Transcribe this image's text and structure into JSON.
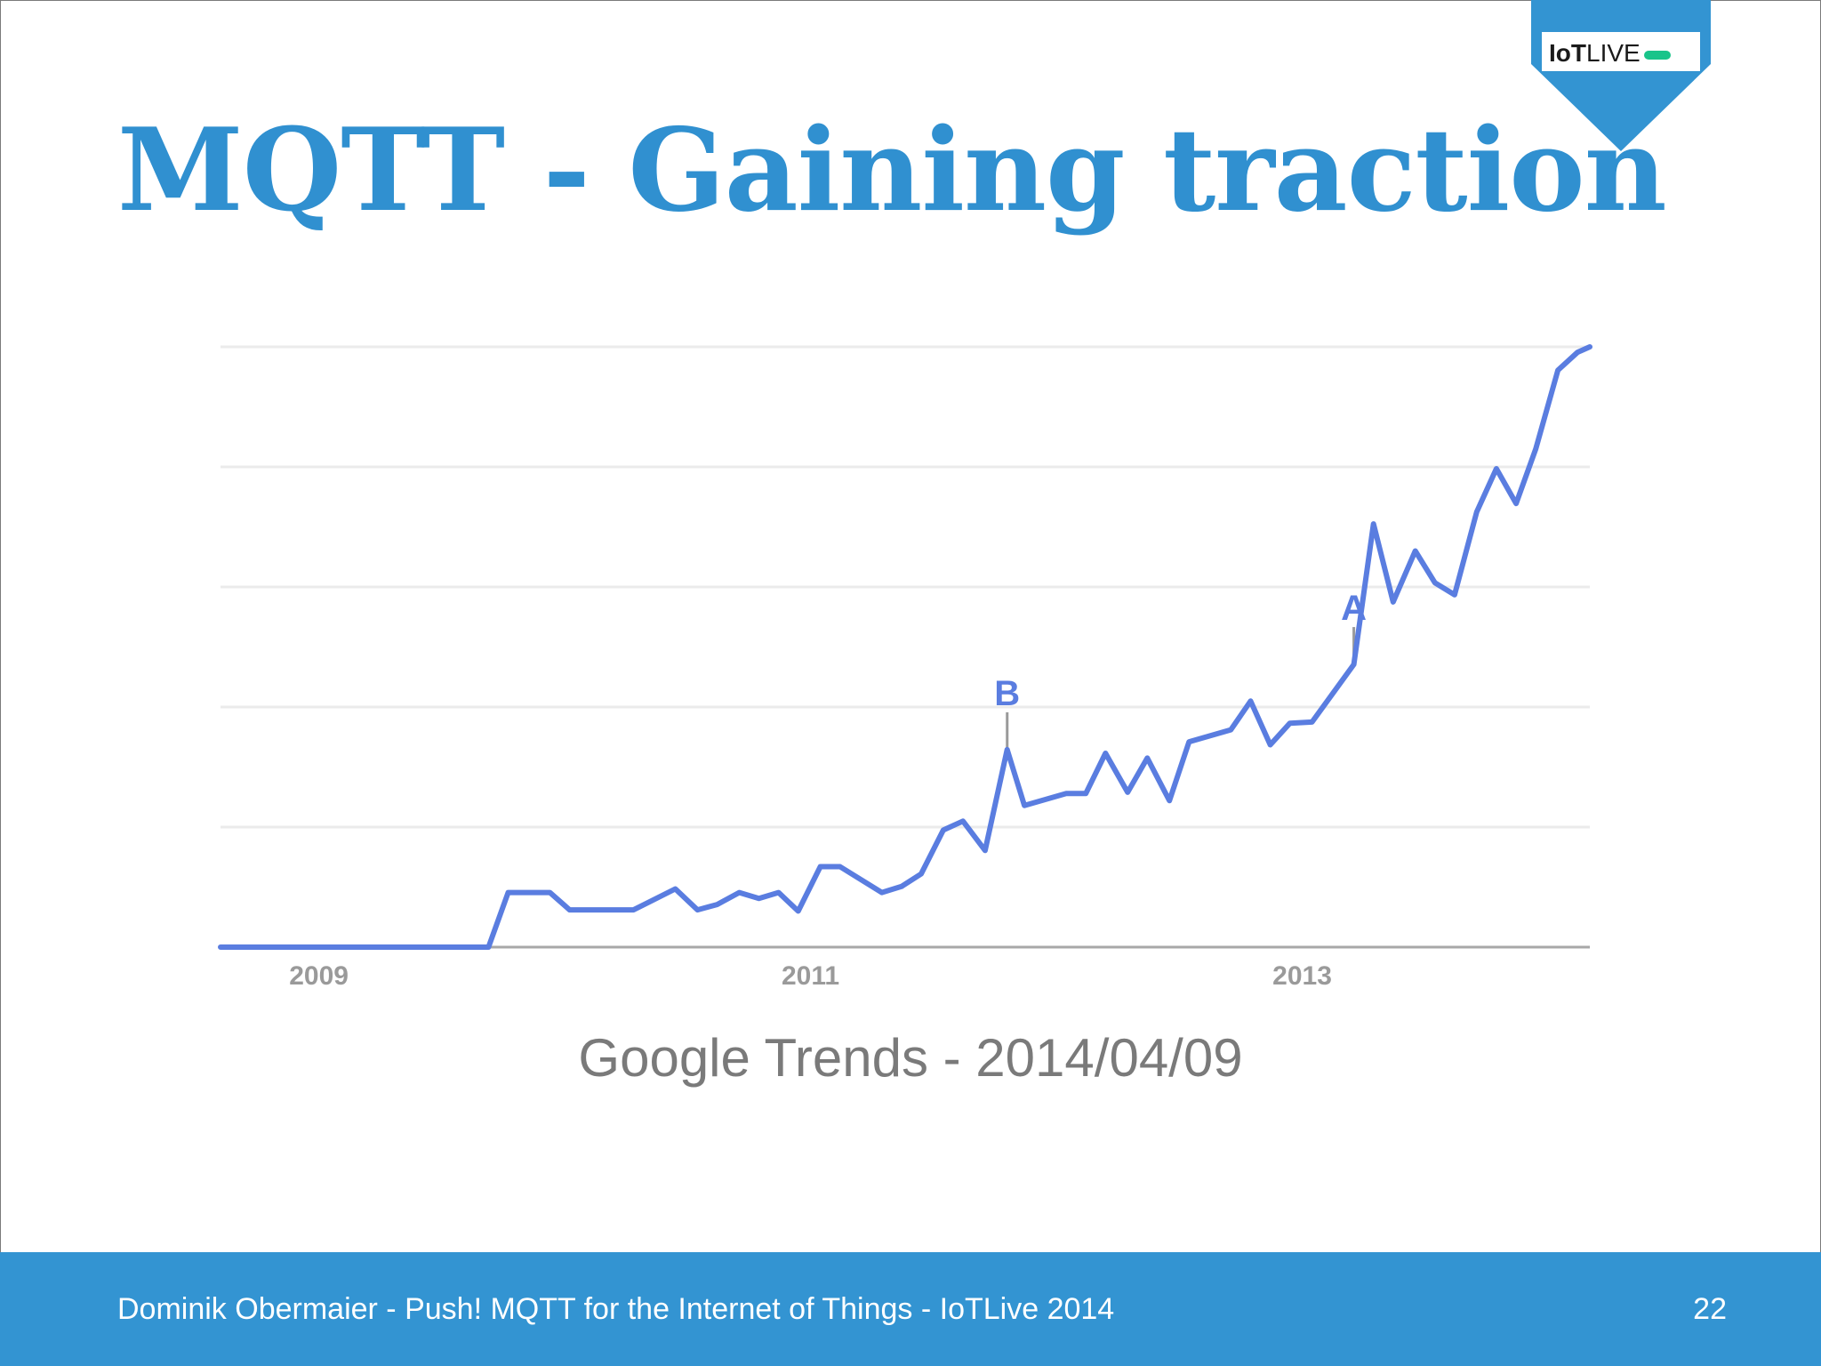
{
  "slide": {
    "title": "MQTT - Gaining traction",
    "caption": "Google Trends - 2014/04/09",
    "page_number": "22",
    "accent_color": "#3394d2"
  },
  "badge": {
    "logo_text": "IoTLIVE",
    "logo_bold": "IoT",
    "logo_light": "LIVE"
  },
  "footer": {
    "text": "Dominik Obermaier - Push! MQTT for the Internet of Things - IoTLive 2014"
  },
  "chart_data": {
    "type": "line",
    "x_tick_labels": [
      "2009",
      "2011",
      "2013"
    ],
    "ylim": [
      0,
      100
    ],
    "grid": true,
    "line_color": "#5a7de0",
    "series": [
      {
        "points": [
          [
            2008.73,
            0
          ],
          [
            2009.09,
            0
          ],
          [
            2009.45,
            0
          ],
          [
            2009.82,
            0
          ],
          [
            2009.9,
            9.1
          ],
          [
            2010.07,
            9.1
          ],
          [
            2010.15,
            6.2
          ],
          [
            2010.41,
            6.2
          ],
          [
            2010.58,
            9.7
          ],
          [
            2010.67,
            6.2
          ],
          [
            2010.75,
            7.1
          ],
          [
            2010.84,
            9.1
          ],
          [
            2010.92,
            8.1
          ],
          [
            2011.0,
            9.1
          ],
          [
            2011.08,
            6.0
          ],
          [
            2011.17,
            13.4
          ],
          [
            2011.25,
            13.4
          ],
          [
            2011.42,
            9.1
          ],
          [
            2011.5,
            10.1
          ],
          [
            2011.58,
            12.2
          ],
          [
            2011.67,
            19.5
          ],
          [
            2011.75,
            21.0
          ],
          [
            2011.84,
            16.1
          ],
          [
            2011.93,
            32.9
          ],
          [
            2012.0,
            23.6
          ],
          [
            2012.17,
            25.6
          ],
          [
            2012.25,
            25.6
          ],
          [
            2012.33,
            32.3
          ],
          [
            2012.42,
            25.8
          ],
          [
            2012.5,
            31.5
          ],
          [
            2012.59,
            24.4
          ],
          [
            2012.67,
            34.2
          ],
          [
            2012.84,
            36.2
          ],
          [
            2012.92,
            41.0
          ],
          [
            2013.0,
            33.7
          ],
          [
            2013.08,
            37.3
          ],
          [
            2013.17,
            37.5
          ],
          [
            2013.34,
            47.1
          ],
          [
            2013.42,
            70.5
          ],
          [
            2013.5,
            57.5
          ],
          [
            2013.59,
            66.0
          ],
          [
            2013.67,
            60.7
          ],
          [
            2013.75,
            58.7
          ],
          [
            2013.84,
            72.5
          ],
          [
            2013.92,
            79.7
          ],
          [
            2014.0,
            73.9
          ],
          [
            2014.08,
            83.0
          ],
          [
            2014.17,
            96.1
          ],
          [
            2014.25,
            99.1
          ],
          [
            2014.3,
            100
          ]
        ]
      }
    ],
    "annotations": [
      {
        "label": "B",
        "x": 2011.93,
        "y": 32.9
      },
      {
        "label": "A",
        "x": 2013.34,
        "y": 47.1
      }
    ]
  }
}
